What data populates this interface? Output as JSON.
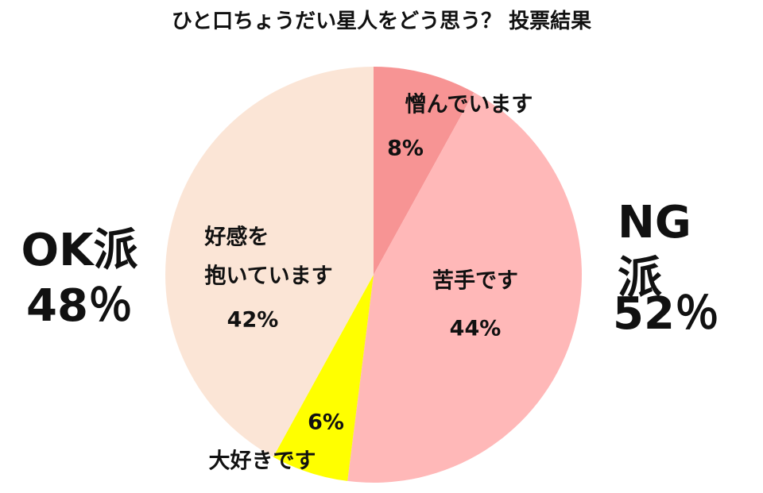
{
  "chart_data": {
    "type": "pie",
    "title": "ひと口ちょうだい星人をどう思う？ 投票結果",
    "categories": [
      "憎んでいます",
      "苦手です",
      "大好きです",
      "好感を\n抱いています"
    ],
    "values": [
      8,
      44,
      6,
      42
    ],
    "value_labels": [
      "8%",
      "44%",
      "6%",
      "42%"
    ],
    "colors": [
      "#f79494",
      "#ffb8b8",
      "#ffff00",
      "#fbe5d6"
    ],
    "groups": {
      "names": [
        "NG派",
        "OK派"
      ],
      "values": [
        52,
        48
      ],
      "value_labels": [
        "52％",
        "48％"
      ]
    }
  }
}
